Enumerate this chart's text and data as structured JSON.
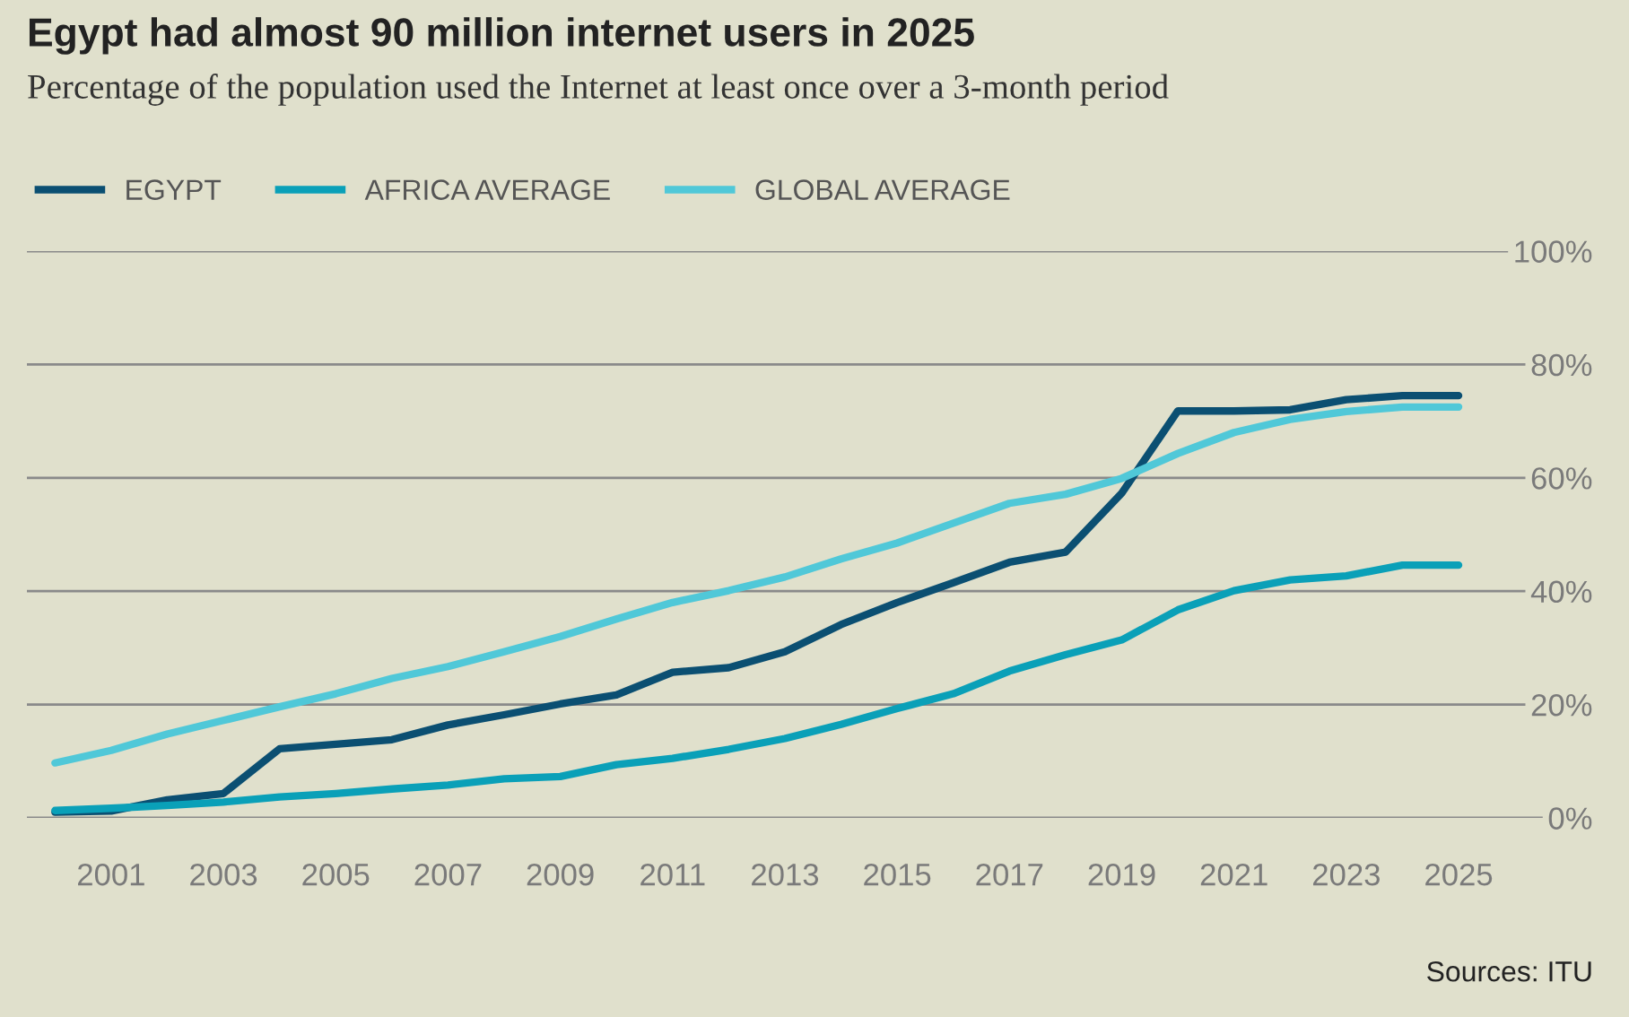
{
  "chart_data": {
    "type": "line",
    "title": "Egypt had almost 90 million internet users in 2025",
    "subtitle": "Percentage of the population used the Internet at least once over a 3-month period",
    "x": [
      2000,
      2001,
      2002,
      2003,
      2004,
      2005,
      2006,
      2007,
      2008,
      2009,
      2010,
      2011,
      2012,
      2013,
      2014,
      2015,
      2016,
      2017,
      2018,
      2019,
      2020,
      2021,
      2022,
      2023,
      2024,
      2025
    ],
    "series": [
      {
        "name": "EGYPT",
        "color": "#0b4f72",
        "values": [
          1.0,
          1.2,
          3.2,
          4.3,
          12.2,
          13.0,
          13.8,
          16.4,
          18.2,
          20.1,
          21.7,
          25.7,
          26.5,
          29.3,
          34.1,
          38.0,
          41.5,
          45.1,
          46.9,
          57.3,
          71.8,
          71.8,
          72.0,
          73.8,
          74.5,
          74.5
        ]
      },
      {
        "name": "AFRICA AVERAGE",
        "color": "#0aa0b8",
        "values": [
          1.3,
          1.7,
          2.2,
          2.8,
          3.7,
          4.3,
          5.1,
          5.8,
          6.9,
          7.3,
          9.4,
          10.5,
          12.1,
          14.0,
          16.5,
          19.3,
          21.9,
          25.9,
          28.8,
          31.4,
          36.7,
          40.1,
          42.0,
          42.7,
          44.6,
          44.6
        ]
      },
      {
        "name": "GLOBAL AVERAGE",
        "color": "#50c8d8",
        "values": [
          9.7,
          11.9,
          14.8,
          17.2,
          19.6,
          21.9,
          24.6,
          26.7,
          29.3,
          32.0,
          35.1,
          38.0,
          40.1,
          42.5,
          45.7,
          48.5,
          52.0,
          55.5,
          57.1,
          59.9,
          64.3,
          68.0,
          70.3,
          71.7,
          72.5,
          72.5
        ]
      }
    ],
    "xlim": [
      1999.5,
      2027.3
    ],
    "ylim": [
      0,
      100
    ],
    "xticks": [
      2001,
      2003,
      2005,
      2007,
      2009,
      2011,
      2013,
      2015,
      2017,
      2019,
      2021,
      2023,
      2025
    ],
    "yticks": [
      {
        "value": 0,
        "label": "0%"
      },
      {
        "value": 20,
        "label": "20%"
      },
      {
        "value": 40,
        "label": "40%"
      },
      {
        "value": 60,
        "label": "60%"
      },
      {
        "value": 80,
        "label": "80%"
      },
      {
        "value": 100,
        "label": "100%"
      }
    ],
    "grid": "y",
    "legend": "top left",
    "marker": "none",
    "line_style": "solid",
    "annotations": [
      "Sources: ITU"
    ]
  }
}
